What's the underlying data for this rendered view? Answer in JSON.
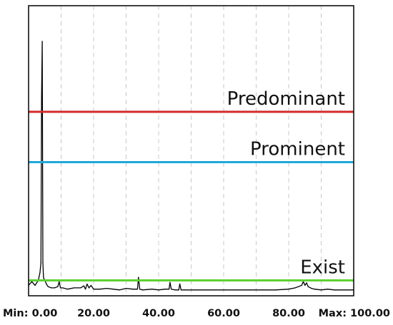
{
  "chart_data": {
    "type": "line",
    "title": "",
    "xlabel": "",
    "ylabel": "",
    "xlim": [
      0,
      100
    ],
    "ylim": [
      0,
      1
    ],
    "grid": {
      "x": true,
      "y": false,
      "style": "dashed"
    },
    "x_ticks": [
      {
        "value": 0,
        "label": "Min: 0.00"
      },
      {
        "value": 20,
        "label": "20.00"
      },
      {
        "value": 40,
        "label": "40.00"
      },
      {
        "value": 60,
        "label": "60.00"
      },
      {
        "value": 80,
        "label": "80.00"
      },
      {
        "value": 100,
        "label": "Max: 100.00"
      }
    ],
    "thresholds": [
      {
        "label": "Predominant",
        "value": 0.72,
        "color": "#d42a2a"
      },
      {
        "label": "Prominent",
        "value": 0.52,
        "color": "#20a8d8"
      },
      {
        "label": "Exist",
        "value": 0.05,
        "color": "#5ad12e"
      }
    ],
    "series": [
      {
        "color": "#000000",
        "x": [
          0,
          1,
          2,
          3,
          3.5,
          3.8,
          4.0,
          4.2,
          4.4,
          4.6,
          5,
          5.5,
          6,
          7,
          8,
          9,
          9.4,
          9.8,
          10.5,
          12,
          14,
          16,
          17,
          17.5,
          18,
          18.6,
          19.2,
          20,
          22,
          24,
          26,
          28,
          30,
          32,
          33.5,
          33.8,
          34.2,
          35,
          38,
          40,
          42,
          43.2,
          43.5,
          43.9,
          45,
          46.2,
          46.5,
          46.9,
          48,
          52,
          56,
          60,
          64,
          68,
          72,
          76,
          80,
          82,
          83,
          84,
          84.5,
          85,
          85.5,
          86,
          87,
          88,
          90,
          92,
          94,
          96,
          98,
          100
        ],
        "y": [
          0.03,
          0.045,
          0.03,
          0.05,
          0.08,
          0.12,
          0.78,
          1.0,
          0.12,
          0.06,
          0.05,
          0.035,
          0.025,
          0.02,
          0.02,
          0.025,
          0.045,
          0.02,
          0.02,
          0.015,
          0.02,
          0.02,
          0.028,
          0.015,
          0.035,
          0.02,
          0.03,
          0.015,
          0.015,
          0.018,
          0.015,
          0.012,
          0.018,
          0.015,
          0.015,
          0.062,
          0.015,
          0.012,
          0.015,
          0.012,
          0.015,
          0.015,
          0.042,
          0.015,
          0.012,
          0.012,
          0.036,
          0.012,
          0.012,
          0.012,
          0.012,
          0.012,
          0.012,
          0.012,
          0.012,
          0.012,
          0.015,
          0.02,
          0.025,
          0.03,
          0.045,
          0.03,
          0.04,
          0.025,
          0.018,
          0.015,
          0.012,
          0.015,
          0.012,
          0.012,
          0.012,
          0.012
        ]
      }
    ]
  }
}
